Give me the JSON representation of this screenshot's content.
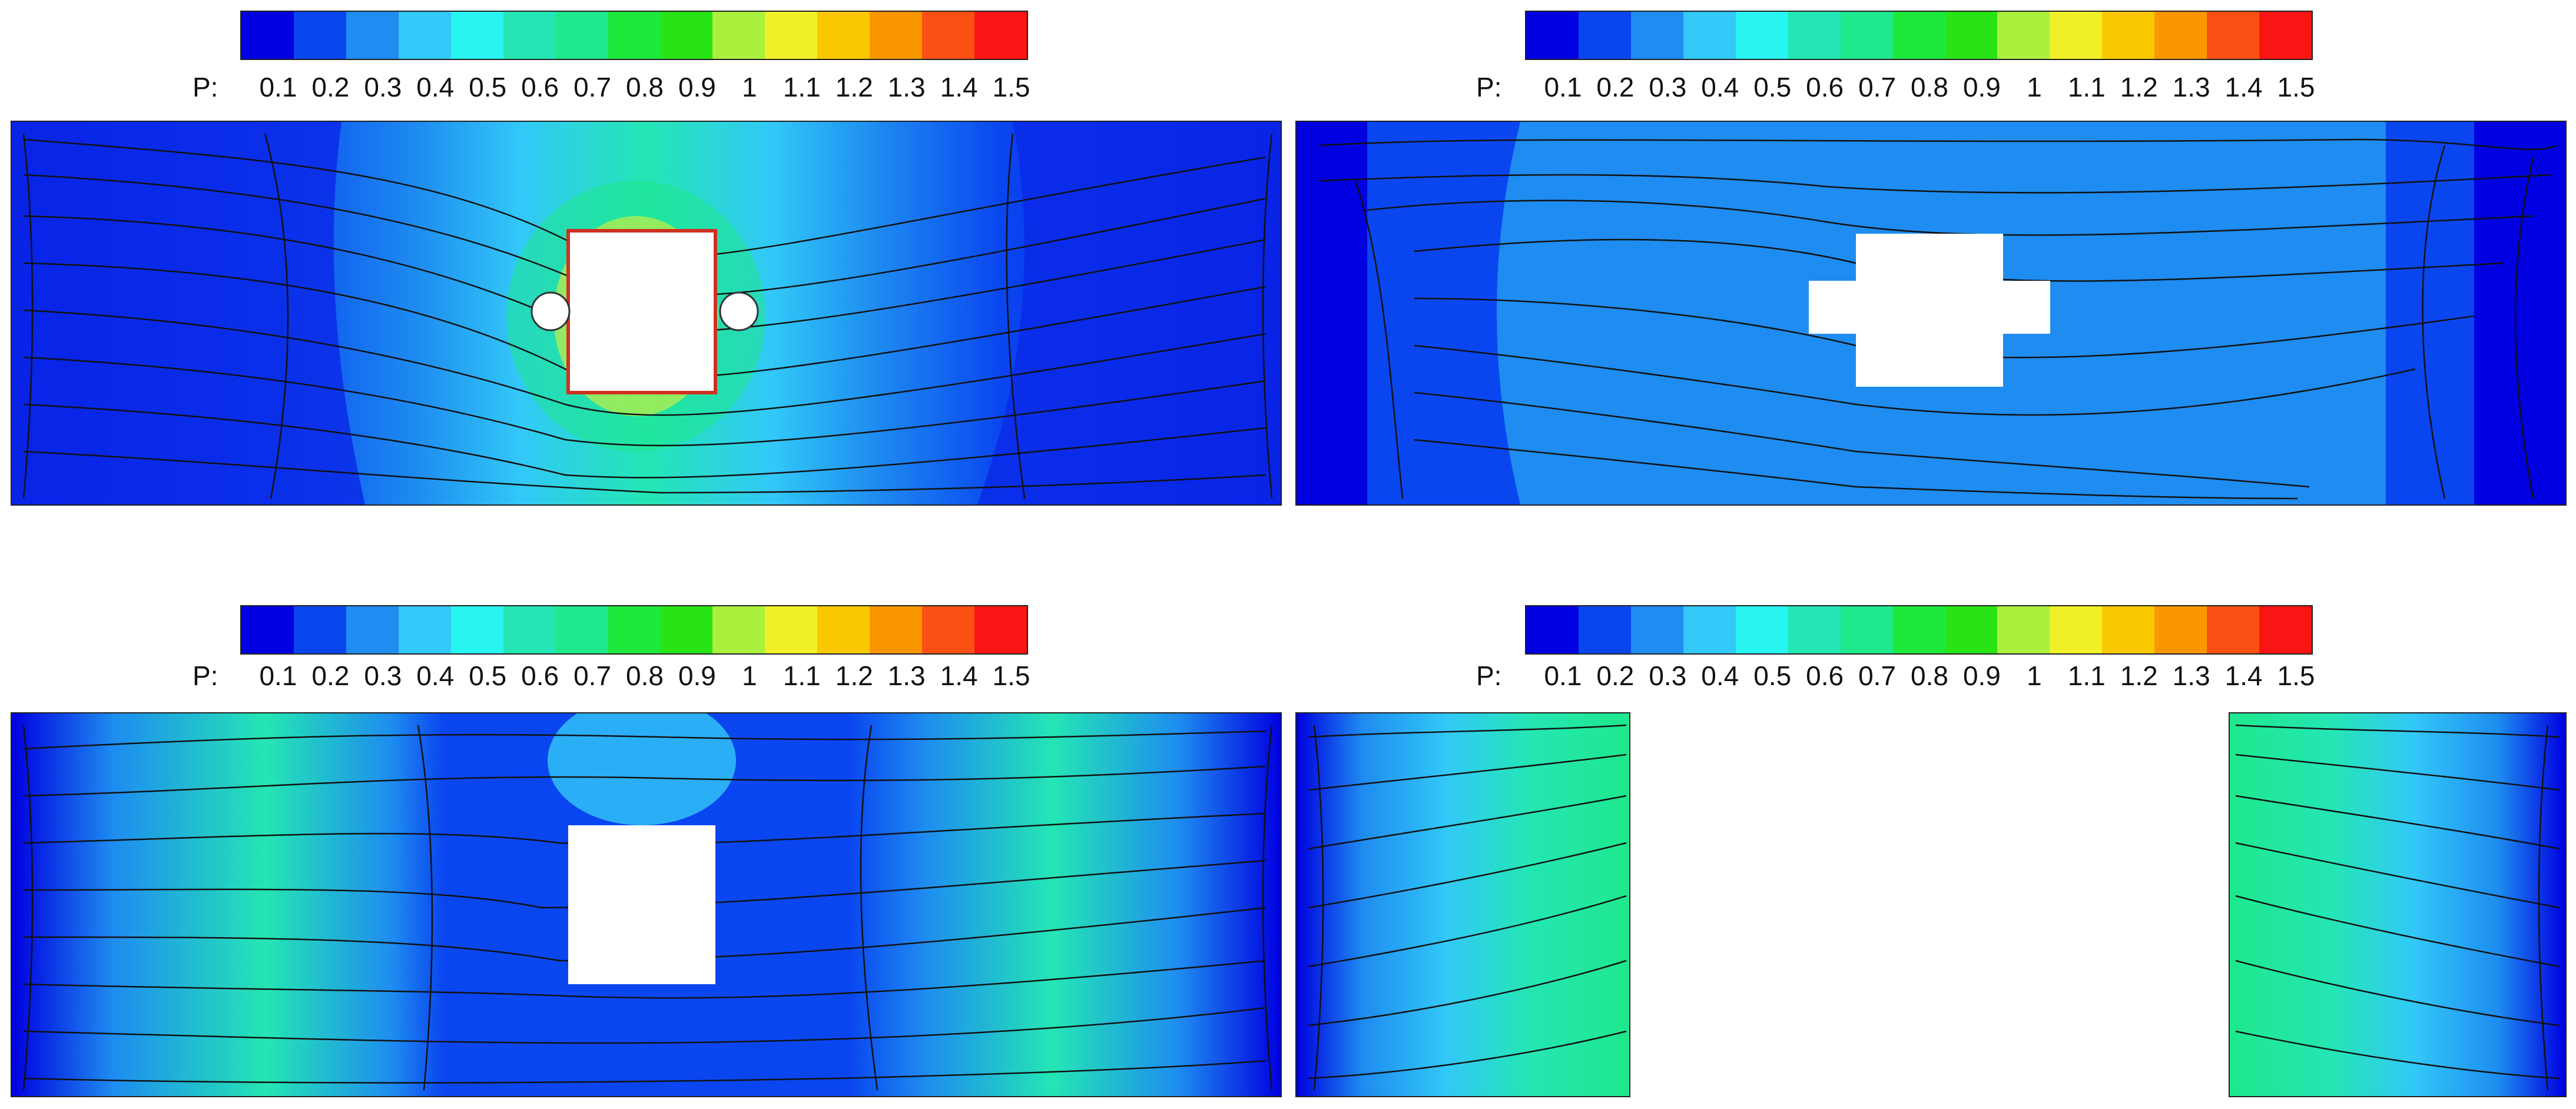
{
  "colormap": [
    "#0000e0",
    "#0a46f0",
    "#1e8cf0",
    "#32c8f8",
    "#28f4f0",
    "#24e6b4",
    "#1ee88c",
    "#1ee83c",
    "#28e416",
    "#aaf03c",
    "#f0f028",
    "#fac800",
    "#fa9600",
    "#fa5014",
    "#fa1414"
  ],
  "panels": [
    {
      "id": "top-left",
      "scale": {
        "prefix": "P:",
        "ticks": [
          "0.1",
          "0.2",
          "0.3",
          "0.4",
          "0.5",
          "0.6",
          "0.7",
          "0.8",
          "0.9",
          "1",
          "1.1",
          "1.2",
          "1.3",
          "1.4",
          "1.5"
        ]
      },
      "obstacle": "square-with-round-rods"
    },
    {
      "id": "top-right",
      "scale": {
        "prefix": "P:",
        "ticks": [
          "0.1",
          "0.2",
          "0.3",
          "0.4",
          "0.5",
          "0.6",
          "0.7",
          "0.8",
          "0.9",
          "1",
          "1.1",
          "1.2",
          "1.3",
          "1.4",
          "1.5"
        ]
      },
      "obstacle": "cross-shape"
    },
    {
      "id": "bottom-left",
      "scale": {
        "prefix": "P:",
        "ticks": [
          "0.1",
          "0.2",
          "0.3",
          "0.4",
          "0.5",
          "0.6",
          "0.7",
          "0.8",
          "0.9",
          "1",
          "1.1",
          "1.2",
          "1.3",
          "1.4",
          "1.5"
        ]
      },
      "obstacle": "square"
    },
    {
      "id": "bottom-right",
      "scale": {
        "prefix": "P:",
        "ticks": [
          "0.1",
          "0.2",
          "0.3",
          "0.4",
          "0.5",
          "0.6",
          "0.7",
          "0.8",
          "0.9",
          "1",
          "1.1",
          "1.2",
          "1.3",
          "1.4",
          "1.5"
        ]
      },
      "obstacle": "large-gap"
    }
  ]
}
